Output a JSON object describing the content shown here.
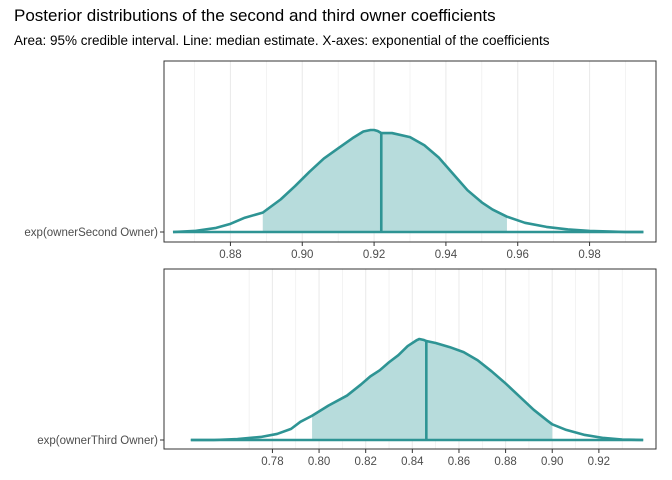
{
  "title": "Posterior distributions of the second and third owner coefficients",
  "subtitle": "Area: 95% credible interval. Line: median estimate. X-axes: exponential of the coefficients",
  "colors": {
    "line": "#2e9494",
    "fill": "#b7dcdc",
    "grid": "#ebebeb",
    "border": "#333333"
  },
  "chart_data": [
    {
      "type": "area",
      "ylabel": "exp(ownerSecond Owner)",
      "xlim": [
        0.8615,
        0.9985
      ],
      "xticks": [
        0.88,
        0.9,
        0.92,
        0.94,
        0.96,
        0.98
      ],
      "tick_labels": [
        "0.88",
        "0.90",
        "0.92",
        "0.94",
        "0.96",
        "0.98"
      ],
      "ci_low": 0.889,
      "ci_high": 0.957,
      "median": 0.922,
      "grid": true,
      "density": {
        "x": [
          0.864,
          0.87,
          0.876,
          0.88,
          0.884,
          0.889,
          0.894,
          0.898,
          0.902,
          0.906,
          0.91,
          0.914,
          0.917,
          0.919,
          0.92,
          0.921,
          0.922,
          0.925,
          0.93,
          0.934,
          0.938,
          0.942,
          0.946,
          0.95,
          0.953,
          0.957,
          0.962,
          0.968,
          0.974,
          0.98,
          0.986,
          0.99,
          0.995
        ],
        "y": [
          0.0,
          0.01,
          0.04,
          0.08,
          0.14,
          0.19,
          0.32,
          0.45,
          0.59,
          0.72,
          0.82,
          0.92,
          0.985,
          1.0,
          1.0,
          0.99,
          0.97,
          0.97,
          0.93,
          0.85,
          0.73,
          0.57,
          0.41,
          0.29,
          0.22,
          0.15,
          0.09,
          0.05,
          0.025,
          0.01,
          0.005,
          0.0,
          0.0
        ]
      }
    },
    {
      "type": "area",
      "ylabel": "exp(ownerThird Owner)",
      "xlim": [
        0.7335,
        0.9445
      ],
      "xticks": [
        0.78,
        0.8,
        0.82,
        0.84,
        0.86,
        0.88,
        0.9,
        0.92
      ],
      "tick_labels": [
        "0.78",
        "0.80",
        "0.82",
        "0.84",
        "0.86",
        "0.88",
        "0.90",
        "0.92"
      ],
      "ci_low": 0.797,
      "ci_high": 0.9,
      "median": 0.846,
      "grid": true,
      "density": {
        "x": [
          0.745,
          0.755,
          0.765,
          0.775,
          0.782,
          0.788,
          0.792,
          0.797,
          0.804,
          0.812,
          0.818,
          0.822,
          0.826,
          0.83,
          0.834,
          0.838,
          0.842,
          0.843,
          0.845,
          0.846,
          0.85,
          0.856,
          0.862,
          0.868,
          0.874,
          0.88,
          0.886,
          0.892,
          0.898,
          0.9,
          0.906,
          0.914,
          0.922,
          0.93,
          0.939
        ],
        "y": [
          0.0,
          0.0,
          0.01,
          0.03,
          0.06,
          0.11,
          0.18,
          0.24,
          0.34,
          0.44,
          0.55,
          0.63,
          0.69,
          0.77,
          0.84,
          0.93,
          0.99,
          1.0,
          0.99,
          0.98,
          0.96,
          0.92,
          0.87,
          0.79,
          0.68,
          0.56,
          0.43,
          0.3,
          0.19,
          0.155,
          0.1,
          0.05,
          0.02,
          0.005,
          0.0
        ]
      }
    }
  ]
}
